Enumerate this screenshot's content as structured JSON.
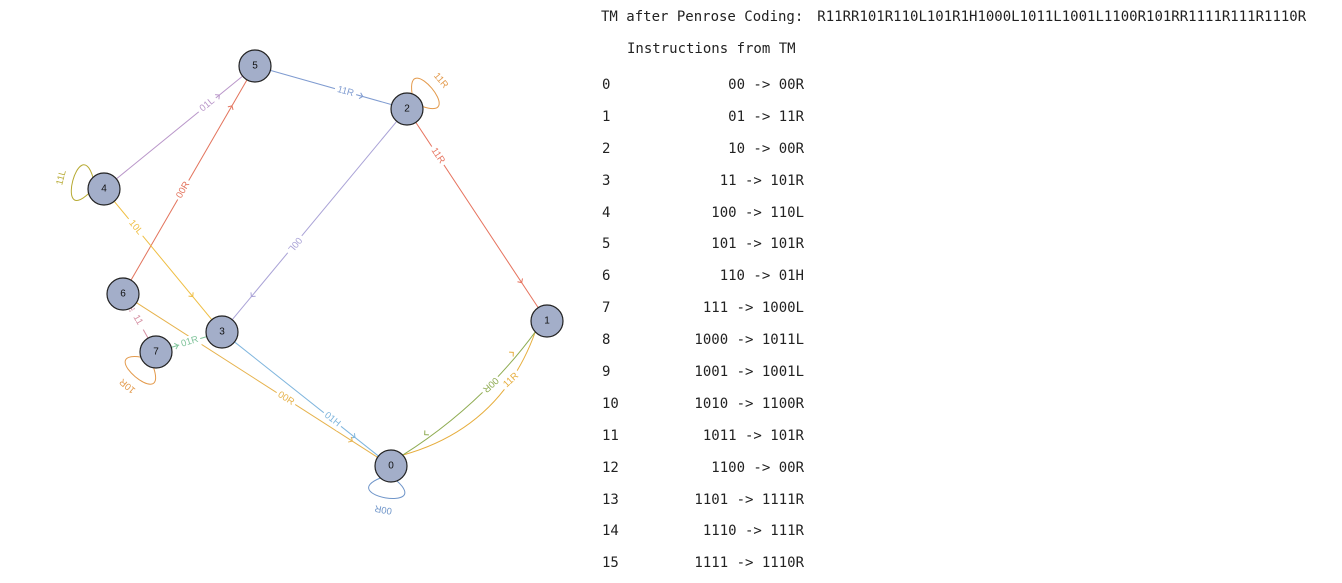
{
  "coding": {
    "label": "TM after Penrose Coding:",
    "value": "R11RR101R110L101R1H1000L1011L1001L1100R101RR1111R111R1110R"
  },
  "instructions": {
    "title": "Instructions from TM",
    "rows": [
      {
        "index": "0",
        "rule": "00 -> 00R"
      },
      {
        "index": "1",
        "rule": "01 -> 11R"
      },
      {
        "index": "2",
        "rule": "10 -> 00R"
      },
      {
        "index": "3",
        "rule": "11 -> 101R"
      },
      {
        "index": "4",
        "rule": "100 -> 110L"
      },
      {
        "index": "5",
        "rule": "101 -> 101R"
      },
      {
        "index": "6",
        "rule": "110 -> 01H"
      },
      {
        "index": "7",
        "rule": "111 -> 1000L"
      },
      {
        "index": "8",
        "rule": "1000 -> 1011L"
      },
      {
        "index": "9",
        "rule": "1001 -> 1001L"
      },
      {
        "index": "10",
        "rule": "1010 -> 1100R"
      },
      {
        "index": "11",
        "rule": "1011 -> 101R"
      },
      {
        "index": "12",
        "rule": "1100 -> 00R"
      },
      {
        "index": "13",
        "rule": "1101 -> 1111R"
      },
      {
        "index": "14",
        "rule": "1110 -> 111R"
      },
      {
        "index": "15",
        "rule": "1111 -> 1110R"
      }
    ]
  },
  "graph": {
    "nodes": [
      {
        "id": "0",
        "label": "0"
      },
      {
        "id": "1",
        "label": "1"
      },
      {
        "id": "2",
        "label": "2"
      },
      {
        "id": "3",
        "label": "3"
      },
      {
        "id": "4",
        "label": "4"
      },
      {
        "id": "5",
        "label": "5"
      },
      {
        "id": "6",
        "label": "6"
      },
      {
        "id": "7",
        "label": "7"
      }
    ],
    "edges": [
      {
        "from": "0",
        "to": "0",
        "label": "00R",
        "color": "#6f95c9"
      },
      {
        "from": "0",
        "to": "1",
        "label": "11R",
        "color": "#e6ad3c"
      },
      {
        "from": "1",
        "to": "0",
        "label": "00R",
        "color": "#8fac52"
      },
      {
        "from": "2",
        "to": "2",
        "label": "11R",
        "color": "#e39a4c"
      },
      {
        "from": "2",
        "to": "1",
        "label": "11R",
        "color": "#e6735e"
      },
      {
        "from": "5",
        "to": "2",
        "label": "11R",
        "color": "#7f9bd0"
      },
      {
        "from": "2",
        "to": "3",
        "label": "00L",
        "color": "#a9a2d6"
      },
      {
        "from": "4",
        "to": "5",
        "label": "01L",
        "color": "#b996c9"
      },
      {
        "from": "6",
        "to": "5",
        "label": "00R",
        "color": "#e3735c"
      },
      {
        "from": "4",
        "to": "4",
        "label": "11L",
        "color": "#b7aa33"
      },
      {
        "from": "4",
        "to": "3",
        "label": "10L",
        "color": "#efbe42"
      },
      {
        "from": "3",
        "to": "0",
        "label": "01H",
        "color": "#7fb5dd"
      },
      {
        "from": "6",
        "to": "0",
        "label": "00R",
        "color": "#e6b24c"
      },
      {
        "from": "7",
        "to": "3",
        "label": "01R",
        "color": "#7fc39a"
      },
      {
        "from": "6",
        "to": "7",
        "label": "11",
        "color": "#d58fa2"
      },
      {
        "from": "7",
        "to": "7",
        "label": "10R",
        "color": "#e39a4c"
      }
    ]
  }
}
